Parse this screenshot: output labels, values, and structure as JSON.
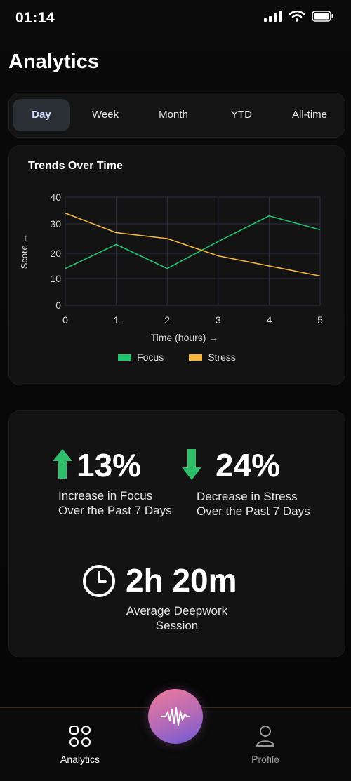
{
  "status": {
    "time": "01:14"
  },
  "header": {
    "title": "Analytics"
  },
  "tabs": [
    {
      "label": "Day",
      "active": true
    },
    {
      "label": "Week",
      "active": false
    },
    {
      "label": "Month",
      "active": false
    },
    {
      "label": "YTD",
      "active": false
    },
    {
      "label": "All-time",
      "active": false
    }
  ],
  "chart_data": {
    "type": "line",
    "title": "Trends Over Time",
    "xlabel": "Time (hours) →",
    "ylabel": "Score →",
    "x": [
      0,
      1,
      2,
      3,
      4,
      5
    ],
    "xlim": [
      0,
      5
    ],
    "y_ticks": [
      0,
      10,
      20,
      30,
      40
    ],
    "series": [
      {
        "name": "Focus",
        "color": "#22c46e",
        "values": [
          14,
          23,
          14,
          24,
          33,
          28
        ]
      },
      {
        "name": "Stress",
        "color": "#f5b63c",
        "values": [
          34,
          27,
          25,
          19,
          15,
          11
        ]
      }
    ],
    "grid": true,
    "legend": "bottom"
  },
  "stats": {
    "focus": {
      "value": "13%",
      "description": "Increase in Focus Over the Past 7 Days",
      "icon": "arrow-up-icon",
      "color": "#2fbf6a"
    },
    "stress": {
      "value": "24%",
      "description": "Decrease in Stress Over the Past 7 Days",
      "icon": "arrow-down-icon",
      "color": "#2fbf6a"
    },
    "session": {
      "value": "2h 20m",
      "label_line1": "Average Deepwork",
      "label_line2": "Session",
      "icon": "clock-icon"
    }
  },
  "nav": {
    "analytics_label": "Analytics",
    "profile_label": "Profile",
    "center_icon": "waveform-icon"
  }
}
